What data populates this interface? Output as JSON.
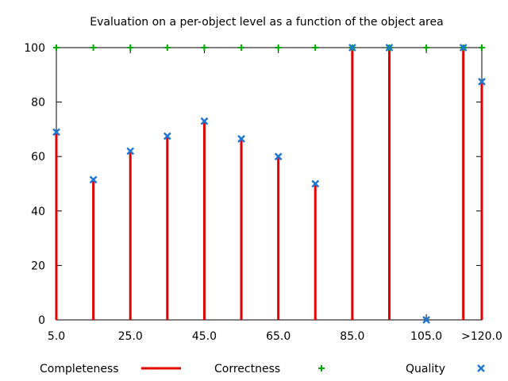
{
  "chart_data": {
    "type": "bar",
    "title": "Evaluation on a per-object level as a function of the object area",
    "xlabel": "",
    "ylabel": "",
    "x": [
      5,
      15,
      25,
      35,
      45,
      55,
      65,
      75,
      85,
      95,
      105,
      115,
      120
    ],
    "x_tick_labels": [
      {
        "x": 5,
        "label": "5.0"
      },
      {
        "x": 25,
        "label": "25.0"
      },
      {
        "x": 45,
        "label": "45.0"
      },
      {
        "x": 65,
        "label": "65.0"
      },
      {
        "x": 85,
        "label": "85.0"
      },
      {
        "x": 105,
        "label": "105.0"
      },
      {
        "x": 120,
        "label": ">120.0"
      }
    ],
    "xlim": [
      5,
      120
    ],
    "ylim": [
      0,
      100
    ],
    "y_ticks": [
      0,
      20,
      40,
      60,
      80,
      100
    ],
    "series": [
      {
        "name": "Completeness",
        "style": "impulse",
        "color": "#e00000",
        "values": [
          69,
          51.5,
          62,
          67.5,
          73,
          66.5,
          60,
          50,
          100,
          100,
          0,
          100,
          87.5
        ]
      },
      {
        "name": "Correctness",
        "style": "plus",
        "color": "#00aa00",
        "values": [
          100,
          100,
          100,
          100,
          100,
          100,
          100,
          100,
          100,
          100,
          100,
          100,
          100
        ]
      },
      {
        "name": "Quality",
        "style": "cross",
        "color": "#1f77d4",
        "values": [
          69,
          51.5,
          62,
          67.5,
          73,
          66.5,
          60,
          50,
          100,
          100,
          0,
          100,
          87.5
        ]
      }
    ],
    "legend_position": "bottom",
    "grid": false
  }
}
